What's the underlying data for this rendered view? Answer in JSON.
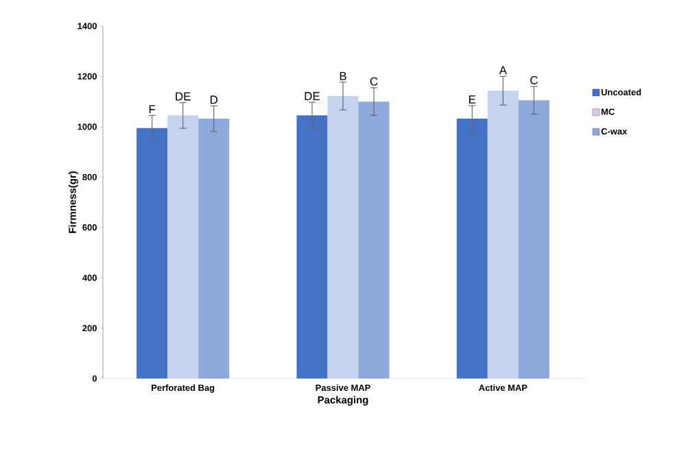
{
  "chart_data": {
    "type": "bar",
    "xlabel": "Packaging",
    "ylabel": "Firmness(gr)",
    "categories": [
      "Perforated Bag",
      "Passive MAP",
      "Active MAP"
    ],
    "series": [
      {
        "name": "Uncoated",
        "color": "#4472c4",
        "values": [
          995,
          1045,
          1032
        ],
        "errors": [
          50,
          52,
          52
        ],
        "value_labels": [
          "F",
          "DE",
          "E"
        ]
      },
      {
        "name": "MC",
        "color": "#c5d3ee",
        "values": [
          1045,
          1122,
          1143
        ],
        "errors": [
          51,
          55,
          57
        ],
        "value_labels": [
          "DE",
          "B",
          "A"
        ]
      },
      {
        "name": "C-wax",
        "color": "#8eaadc",
        "values": [
          1032,
          1100,
          1105
        ],
        "errors": [
          51,
          55,
          55
        ],
        "value_labels": [
          "D",
          "C",
          "C"
        ]
      }
    ],
    "ylim": [
      0,
      1400
    ],
    "yticks": [
      0,
      200,
      400,
      600,
      800,
      1000,
      1200,
      1400
    ],
    "legend": "right",
    "grid": false
  }
}
